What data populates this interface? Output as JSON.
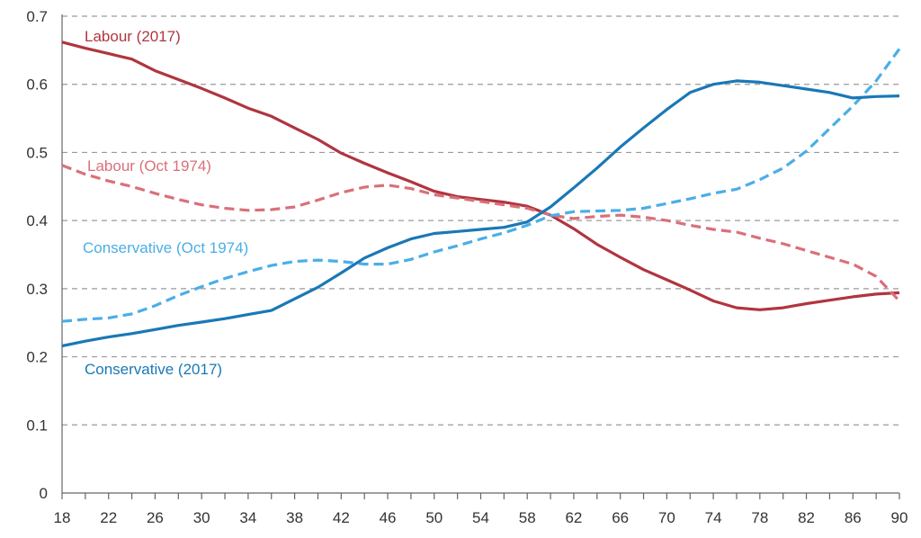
{
  "chart_data": {
    "type": "line",
    "title": "",
    "xlabel": "",
    "ylabel": "",
    "xlim": [
      18,
      90
    ],
    "ylim": [
      0,
      0.7
    ],
    "x_ticks": [
      "18",
      "22",
      "26",
      "30",
      "34",
      "38",
      "42",
      "46",
      "50",
      "54",
      "58",
      "62",
      "66",
      "70",
      "74",
      "78",
      "82",
      "86",
      "90"
    ],
    "y_ticks": [
      "0",
      "0.1",
      "0.2",
      "0.3",
      "0.4",
      "0.5",
      "0.6",
      "0.7"
    ],
    "grid": "horizontal dashed",
    "legend": "inline labels",
    "x": [
      18,
      20,
      22,
      24,
      26,
      28,
      30,
      32,
      34,
      36,
      38,
      40,
      42,
      44,
      46,
      48,
      50,
      52,
      54,
      56,
      58,
      60,
      62,
      64,
      66,
      68,
      70,
      72,
      74,
      76,
      78,
      80,
      82,
      84,
      86,
      88,
      90
    ],
    "series": [
      {
        "name": "Labour (2017)",
        "color": "#b0353f",
        "style": "solid",
        "values": [
          0.662,
          0.653,
          0.645,
          0.637,
          0.62,
          0.607,
          0.594,
          0.58,
          0.565,
          0.553,
          0.536,
          0.519,
          0.499,
          0.484,
          0.47,
          0.457,
          0.443,
          0.435,
          0.431,
          0.427,
          0.421,
          0.408,
          0.388,
          0.365,
          0.346,
          0.328,
          0.313,
          0.298,
          0.282,
          0.272,
          0.269,
          0.272,
          0.278,
          0.283,
          0.288,
          0.292,
          0.294
        ]
      },
      {
        "name": "Labour (Oct 1974)",
        "color": "#d9707a",
        "style": "dashed",
        "values": [
          0.481,
          0.468,
          0.458,
          0.45,
          0.44,
          0.431,
          0.423,
          0.418,
          0.415,
          0.416,
          0.42,
          0.43,
          0.441,
          0.449,
          0.452,
          0.447,
          0.438,
          0.433,
          0.428,
          0.423,
          0.418,
          0.408,
          0.403,
          0.406,
          0.408,
          0.405,
          0.4,
          0.393,
          0.387,
          0.383,
          0.374,
          0.366,
          0.356,
          0.346,
          0.336,
          0.318,
          0.282
        ]
      },
      {
        "name": "Conservative (Oct 1974)",
        "color": "#4aaee7",
        "style": "dashed",
        "values": [
          0.252,
          0.255,
          0.257,
          0.263,
          0.275,
          0.29,
          0.303,
          0.315,
          0.325,
          0.334,
          0.34,
          0.342,
          0.34,
          0.336,
          0.336,
          0.343,
          0.354,
          0.363,
          0.373,
          0.382,
          0.393,
          0.407,
          0.413,
          0.414,
          0.415,
          0.418,
          0.425,
          0.432,
          0.44,
          0.446,
          0.46,
          0.477,
          0.502,
          0.535,
          0.568,
          0.605,
          0.652
        ]
      },
      {
        "name": "Conservative (2017)",
        "color": "#1a78b6",
        "style": "solid",
        "values": [
          0.216,
          0.223,
          0.229,
          0.234,
          0.24,
          0.246,
          0.251,
          0.256,
          0.262,
          0.268,
          0.285,
          0.302,
          0.323,
          0.345,
          0.36,
          0.373,
          0.381,
          0.384,
          0.387,
          0.39,
          0.398,
          0.42,
          0.448,
          0.477,
          0.508,
          0.536,
          0.563,
          0.588,
          0.6,
          0.605,
          0.603,
          0.598,
          0.593,
          0.588,
          0.58,
          0.582,
          0.583
        ]
      }
    ]
  }
}
